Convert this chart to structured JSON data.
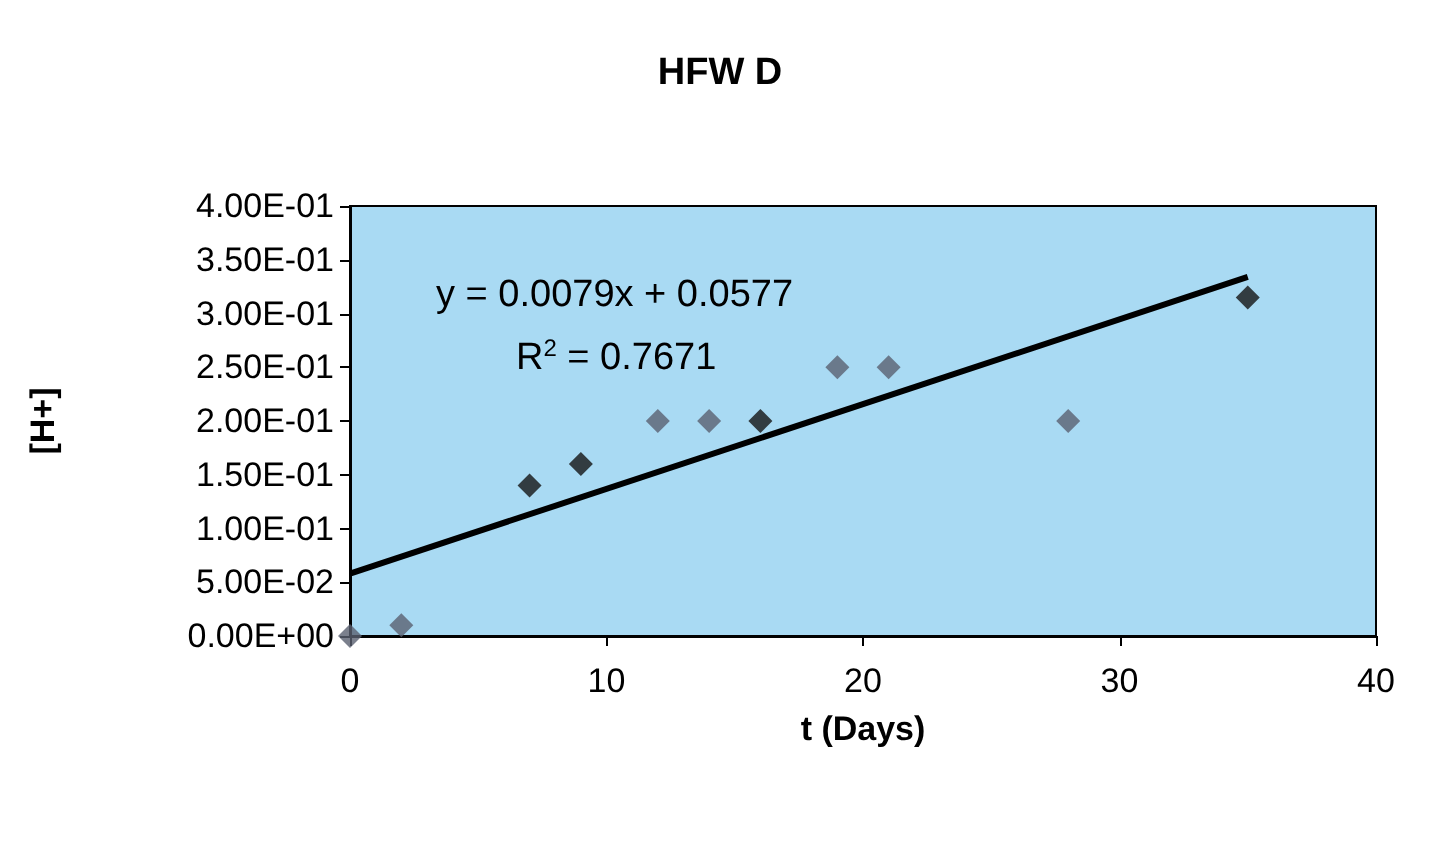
{
  "chart_data": {
    "type": "scatter",
    "title": "HFW D",
    "xlabel": "t (Days)",
    "ylabel": "[H+]",
    "series": [
      {
        "color": "#5a6070",
        "marker": "diamond",
        "x": [
          0,
          2,
          12,
          14,
          19,
          21,
          28
        ],
        "values": [
          0,
          0.01,
          0.2,
          0.2,
          0.25,
          0.25,
          0.2
        ]
      },
      {
        "color": "#141414",
        "marker": "diamond",
        "x": [
          7,
          9,
          16,
          35
        ],
        "values": [
          0.14,
          0.16,
          0.2,
          0.315
        ]
      },
      {
        "type": "line",
        "color": "#000000",
        "line_style": "solid",
        "x": [
          0,
          35
        ],
        "values": [
          0.058,
          0.334
        ]
      }
    ],
    "annotations": [
      "y = 0.0079x + 0.0577",
      "R$^{2}$ = 0.7671"
    ],
    "xlim": [
      0,
      40
    ],
    "xticks": [
      0,
      10,
      20,
      30,
      40
    ],
    "ylim": [
      0,
      0.4
    ],
    "yticks": [
      {
        "value": 0,
        "label": "0.00E+00"
      },
      {
        "value": 0.05,
        "label": "5.00E-02"
      },
      {
        "value": 0.1,
        "label": "1.00E-01"
      },
      {
        "value": 0.15,
        "label": "1.50E-01"
      },
      {
        "value": 0.2,
        "label": "2.00E-01"
      },
      {
        "value": 0.25,
        "label": "2.50E-01"
      },
      {
        "value": 0.3,
        "label": "3.00E-01"
      },
      {
        "value": 0.35,
        "label": "3.50E-01"
      },
      {
        "value": 0.4,
        "label": "4.00E-01"
      }
    ],
    "grid": false
  }
}
